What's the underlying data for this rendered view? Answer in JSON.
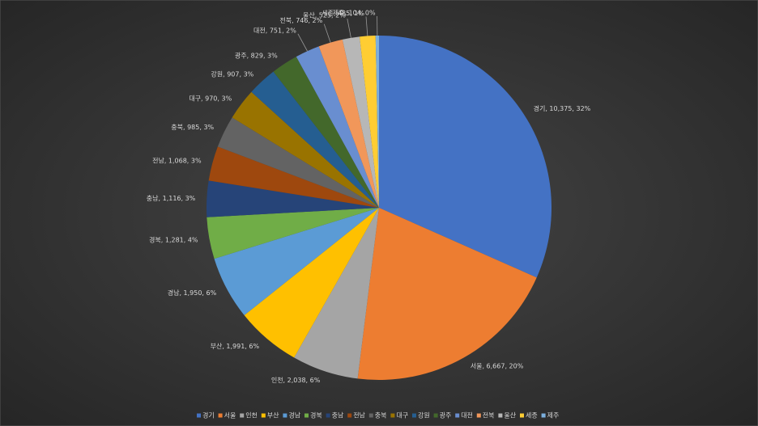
{
  "chart_data": {
    "type": "pie",
    "categories": [
      "경기",
      "서울",
      "인천",
      "부산",
      "경남",
      "경북",
      "충남",
      "전남",
      "충북",
      "대구",
      "강원",
      "광주",
      "대전",
      "전북",
      "울산",
      "세종",
      "제주"
    ],
    "values": [
      10375,
      6667,
      2038,
      1991,
      1950,
      1281,
      1116,
      1068,
      985,
      970,
      907,
      829,
      751,
      746,
      525,
      485,
      104
    ],
    "value_labels": [
      "경기, 10,375, 32%",
      "서울, 6,667, 20%",
      "인천, 2,038, 6%",
      "부산, 1,991, 6%",
      "경남, 1,950, 6%",
      "경북, 1,281, 4%",
      "충남, 1,116, 3%",
      "전남, 1,068, 3%",
      "충북, 985, 3%",
      "대구, 970, 3%",
      "강원, 907, 3%",
      "광주, 829, 3%",
      "대전, 751, 2%",
      "전북, 746, 2%",
      "울산, 525, 2%",
      "세종, 485, 1%",
      "제주, 104, 0%"
    ],
    "colors": [
      "#4472C4",
      "#ED7D31",
      "#A5A5A5",
      "#FFC000",
      "#5B9BD5",
      "#70AD47",
      "#264478",
      "#9E480E",
      "#636363",
      "#997300",
      "#255E91",
      "#43682B",
      "#698ED0",
      "#F1975A",
      "#B7B7B7",
      "#FFCD33",
      "#7CAFDD"
    ],
    "legend": "bottom"
  }
}
